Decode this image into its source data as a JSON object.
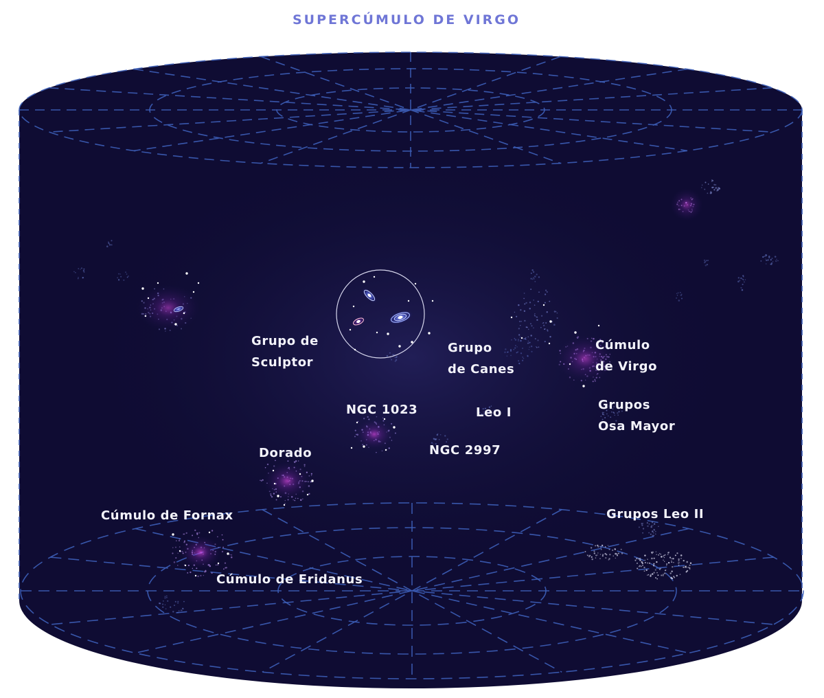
{
  "title": "SUPERCÚMULO DE VIRGO",
  "colors": {
    "background": "#0f0c33",
    "grid": "#3d5fb8",
    "title": "#6f76d6",
    "label": "#f3f3fb",
    "glow": "#d63de0"
  },
  "labels": {
    "sculptor": [
      "Grupo de",
      "Sculptor"
    ],
    "canes": [
      "Grupo",
      "de Canes"
    ],
    "virgo": [
      "Cúmulo",
      "de Virgo"
    ],
    "osa_mayor": [
      "Grupos",
      "Osa Mayor"
    ],
    "ngc1023": "NGC 1023",
    "leo1": "Leo I",
    "ngc2997": "NGC 2997",
    "dorado": "Dorado",
    "fornax": "Cúmulo de Fornax",
    "eridanus": "Cúmulo de Eridanus",
    "leo2": "Grupos Leo II"
  }
}
